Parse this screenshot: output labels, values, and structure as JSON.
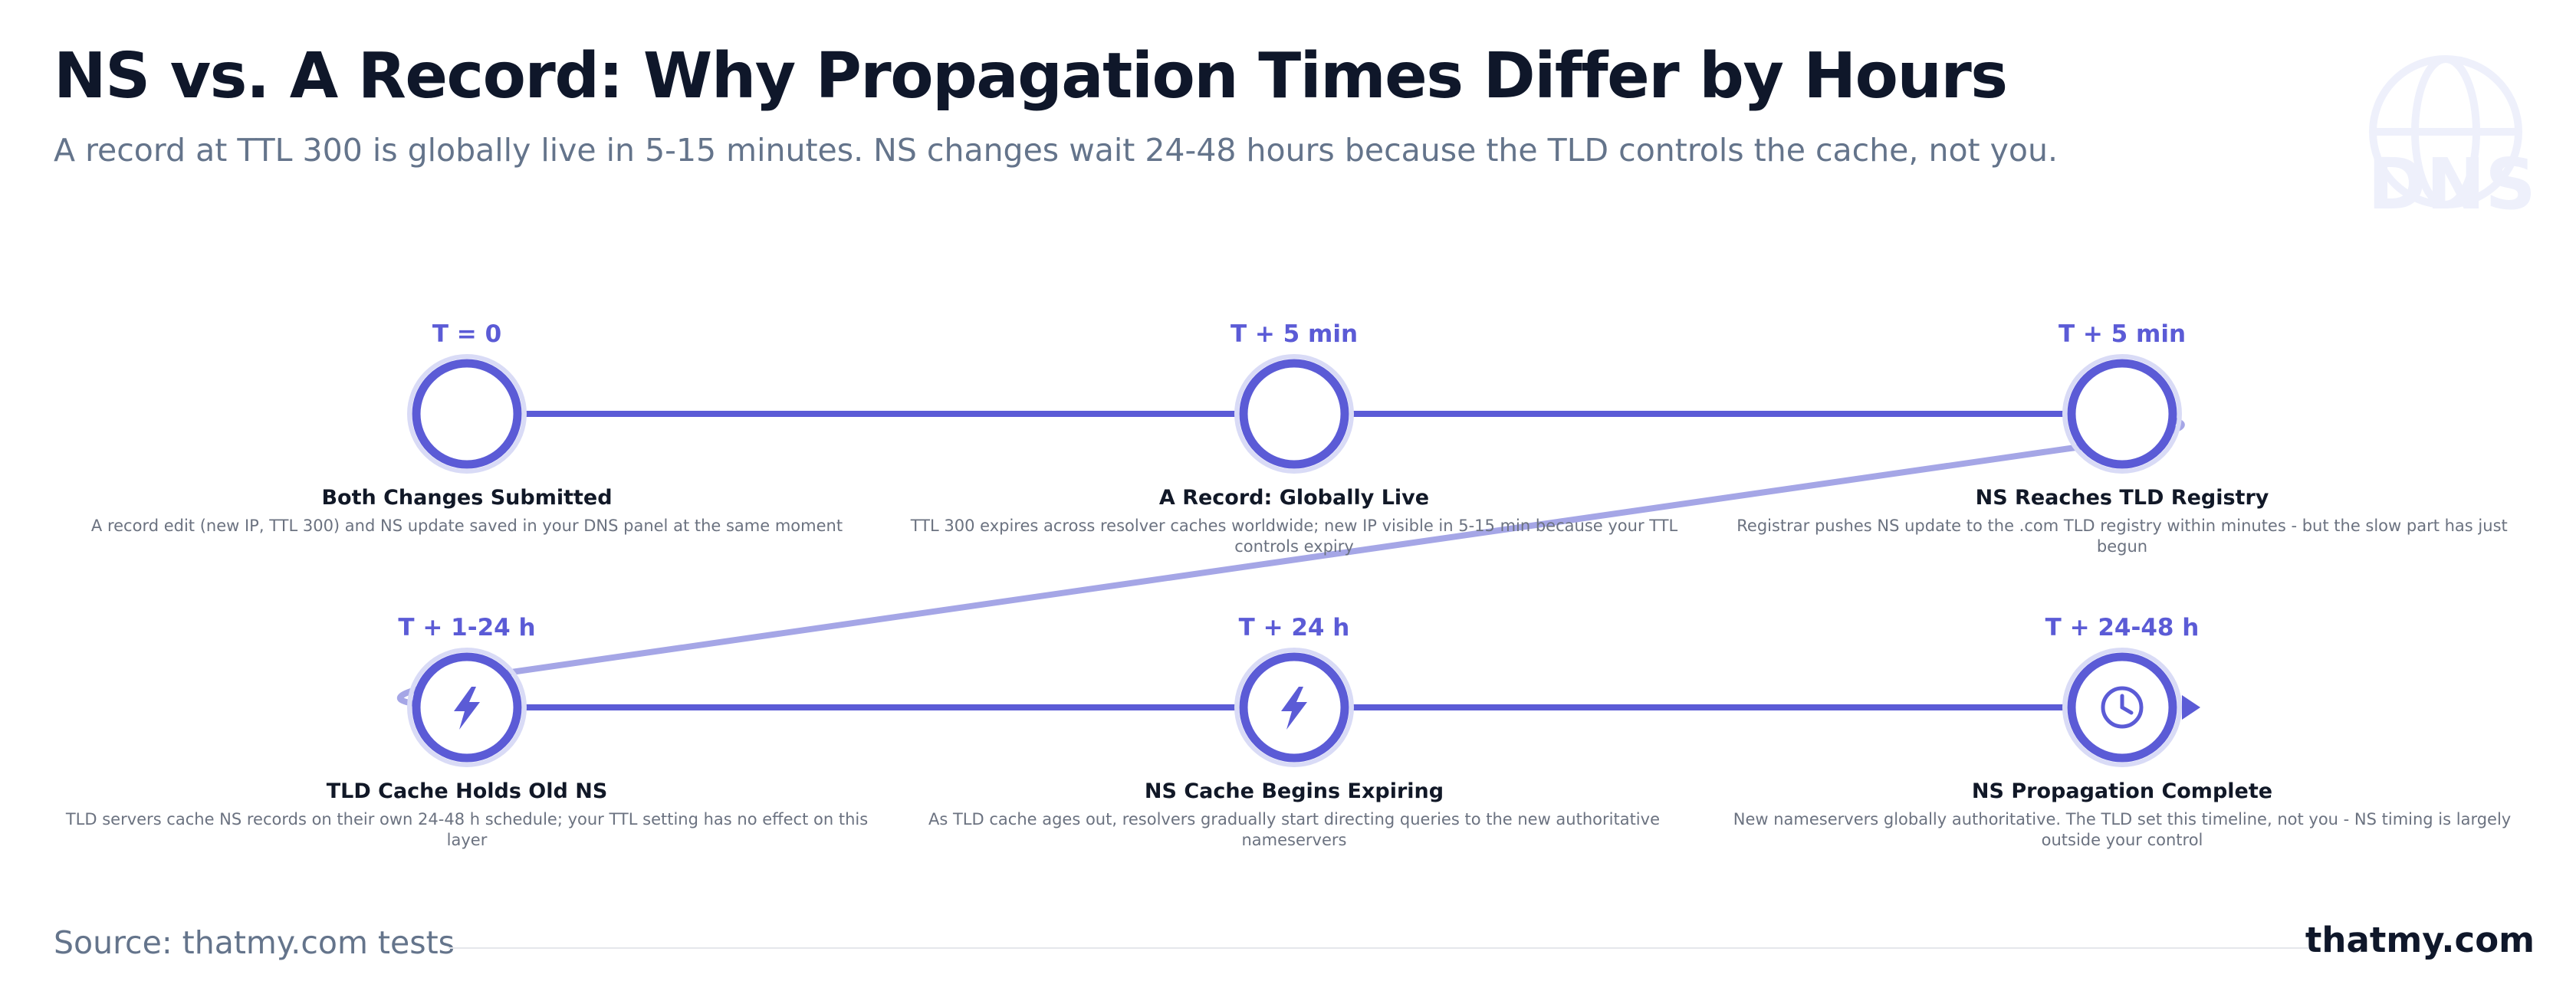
{
  "header": {
    "title": "NS vs. A Record: Why Propagation Times Differ by Hours",
    "subtitle": "A record at TTL 300 is globally live in 5-15 minutes. NS changes wait 24-48 hours because the TLD controls the cache, not you."
  },
  "watermark": {
    "label": "DNS",
    "icon": "globe-icon"
  },
  "stages": [
    {
      "time": "T = 0",
      "title": "Both Changes Submitted",
      "desc": "A record edit (new IP, TTL 300) and NS update saved in your DNS panel at the same moment",
      "icon": ""
    },
    {
      "time": "T + 5 min",
      "title": "A Record: Globally Live",
      "desc": "TTL 300 expires across resolver caches worldwide; new IP visible in 5-15 min because your TTL controls expiry",
      "icon": ""
    },
    {
      "time": "T + 5 min",
      "title": "NS Reaches TLD Registry",
      "desc": "Registrar pushes NS update to the .com TLD registry within minutes - but the slow part has just begun",
      "icon": ""
    },
    {
      "time": "T + 1-24 h",
      "title": "TLD Cache Holds Old NS",
      "desc": "TLD servers cache NS records on their own 24-48 h schedule; your TTL setting has no effect on this layer",
      "icon": "lightning-icon"
    },
    {
      "time": "T + 24 h",
      "title": "NS Cache Begins Expiring",
      "desc": "As TLD cache ages out, resolvers gradually start directing queries to the new authoritative nameservers",
      "icon": "lightning-icon"
    },
    {
      "time": "T + 24-48 h",
      "title": "NS Propagation Complete",
      "desc": "New nameservers globally authoritative. The TLD set this timeline, not you - NS timing is largely outside your control",
      "icon": "clock-icon"
    }
  ],
  "footer": {
    "source": "Source: thatmy.com tests",
    "brand": "thatmy.com"
  },
  "colors": {
    "accent": "#5b5bd6",
    "connector": "#a5a6e6",
    "title": "#0f172a",
    "muted": "#64748b"
  }
}
